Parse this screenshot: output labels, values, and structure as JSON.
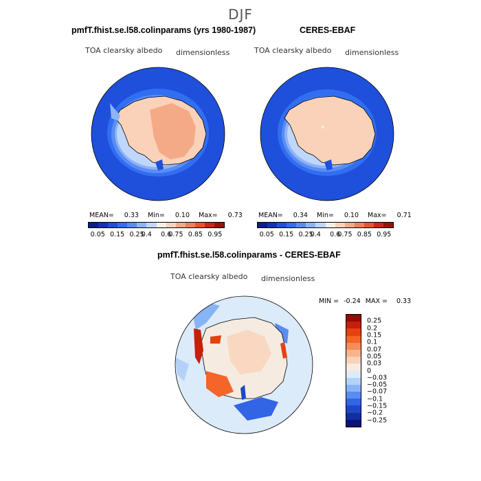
{
  "season": "DJF",
  "panels": [
    {
      "title": "pmfT.fhist.se.l58.colinparams (yrs 1980-1987)",
      "variable": "TOA clearsky albedo",
      "units": "dimensionless",
      "stats": {
        "mean_label": "MEAN=",
        "mean": "0.33",
        "min_label": "Min=",
        "min": "0.10",
        "max_label": "Max=",
        "max": "0.73"
      }
    },
    {
      "title": "CERES-EBAF",
      "variable": "TOA clearsky albedo",
      "units": "dimensionless",
      "stats": {
        "mean_label": "MEAN=",
        "mean": "0.34",
        "min_label": "Min=",
        "min": "0.10",
        "max_label": "Max=",
        "max": "0.71"
      }
    },
    {
      "title": "pmfT.fhist.se.l58.colinparams - CERES-EBAF",
      "variable": "TOA clearsky albedo",
      "units": "dimensionless",
      "stats": {
        "min_label": "MIN =",
        "min": "-0.24",
        "max_label": "MAX =",
        "max": "0.33"
      }
    }
  ],
  "colorbar_top": {
    "colors": [
      "#0a1f8c",
      "#1432b4",
      "#1e50dc",
      "#326ef0",
      "#5a8cf5",
      "#8cb4f8",
      "#bed7fa",
      "#f5f0e6",
      "#fad2b9",
      "#f5aa87",
      "#f0825a",
      "#e6552d",
      "#c82814",
      "#961405"
    ],
    "tick_labels": [
      "0.05",
      "0.15",
      "0.25",
      "0.4",
      "0.6",
      "0.75",
      "0.85",
      "0.95"
    ]
  },
  "colorbar_diff": {
    "colors": [
      "#960a05",
      "#c81e0a",
      "#e6410f",
      "#f56428",
      "#f58c5a",
      "#f8b48c",
      "#fad2b9",
      "#f5ebe1",
      "#dcebfa",
      "#b4d2f8",
      "#87b4f5",
      "#5a8cf0",
      "#3264e6",
      "#1e46c8",
      "#142da0",
      "#0a1478"
    ],
    "tick_labels": [
      "0.25",
      "0.2",
      "0.15",
      "0.1",
      "0.07",
      "0.05",
      "0.03",
      "0",
      "−0.03",
      "−0.05",
      "−0.07",
      "−0.1",
      "−0.15",
      "−0.2",
      "−0.25"
    ]
  }
}
